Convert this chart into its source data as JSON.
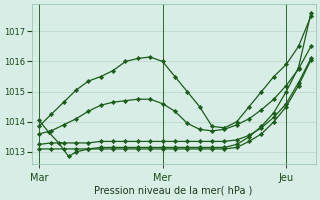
{
  "xlabel": "Pression niveau de la mer( hPa )",
  "bg_color": "#d8ede5",
  "grid_color": "#b8d8cc",
  "line_color": "#1a5c1a",
  "xtick_labels": [
    "Mar",
    "Mer",
    "Jeu"
  ],
  "xtick_pos": [
    0.0,
    0.5,
    1.0
  ],
  "yticks": [
    1013,
    1014,
    1015,
    1016,
    1017
  ],
  "ylim": [
    1012.6,
    1017.9
  ],
  "xlim": [
    -0.03,
    1.12
  ],
  "vline_pos": [
    0.0,
    0.5,
    1.0
  ],
  "series": [
    {
      "x": [
        0.0,
        0.05,
        0.1,
        0.15,
        0.2,
        0.25,
        0.3,
        0.35,
        0.4,
        0.45,
        0.5,
        0.55,
        0.6,
        0.65,
        0.7,
        0.75,
        0.8,
        0.85,
        0.9,
        0.95,
        1.0,
        1.05,
        1.1
      ],
      "y": [
        1013.85,
        1014.25,
        1014.65,
        1015.05,
        1015.35,
        1015.5,
        1015.7,
        1016.0,
        1016.1,
        1016.15,
        1016.0,
        1015.5,
        1015.0,
        1014.5,
        1013.85,
        1013.8,
        1014.0,
        1014.5,
        1015.0,
        1015.5,
        1015.9,
        1016.5,
        1017.5
      ]
    },
    {
      "x": [
        0.0,
        0.05,
        0.1,
        0.15,
        0.2,
        0.25,
        0.3,
        0.35,
        0.4,
        0.45,
        0.5,
        0.55,
        0.6,
        0.65,
        0.7,
        0.75,
        0.8,
        0.85,
        0.9,
        0.95,
        1.0,
        1.05,
        1.1
      ],
      "y": [
        1013.6,
        1013.7,
        1013.9,
        1014.1,
        1014.35,
        1014.55,
        1014.65,
        1014.7,
        1014.75,
        1014.75,
        1014.6,
        1014.35,
        1013.95,
        1013.75,
        1013.7,
        1013.75,
        1013.9,
        1014.1,
        1014.4,
        1014.75,
        1015.2,
        1015.75,
        1016.5
      ]
    },
    {
      "x": [
        0.0,
        0.05,
        0.1,
        0.15,
        0.2,
        0.25,
        0.3,
        0.35,
        0.4,
        0.45,
        0.5,
        0.55,
        0.6,
        0.65,
        0.7,
        0.75,
        0.8,
        0.85,
        0.9,
        0.95,
        1.0,
        1.05,
        1.1
      ],
      "y": [
        1013.25,
        1013.3,
        1013.3,
        1013.3,
        1013.3,
        1013.35,
        1013.35,
        1013.35,
        1013.35,
        1013.35,
        1013.35,
        1013.35,
        1013.35,
        1013.35,
        1013.35,
        1013.35,
        1013.4,
        1013.55,
        1013.8,
        1014.15,
        1014.6,
        1015.3,
        1016.1
      ]
    },
    {
      "x": [
        0.0,
        0.05,
        0.1,
        0.15,
        0.2,
        0.25,
        0.3,
        0.35,
        0.4,
        0.45,
        0.5,
        0.55,
        0.6,
        0.65,
        0.7,
        0.75,
        0.8,
        0.85,
        0.9,
        0.95,
        1.0,
        1.05,
        1.1
      ],
      "y": [
        1013.1,
        1013.1,
        1013.1,
        1013.1,
        1013.1,
        1013.1,
        1013.1,
        1013.1,
        1013.1,
        1013.1,
        1013.1,
        1013.1,
        1013.1,
        1013.1,
        1013.1,
        1013.1,
        1013.15,
        1013.35,
        1013.6,
        1014.0,
        1014.5,
        1015.2,
        1016.05
      ]
    },
    {
      "x": [
        0.0,
        0.04,
        0.08,
        0.12,
        0.15,
        0.2,
        0.25,
        0.3,
        0.35,
        0.4,
        0.45,
        0.5,
        0.55,
        0.6,
        0.65,
        0.7,
        0.75,
        0.8,
        0.85,
        0.9,
        0.95,
        1.0,
        1.05,
        1.1
      ],
      "y": [
        1014.05,
        1013.65,
        1013.3,
        1012.85,
        1013.0,
        1013.1,
        1013.15,
        1013.15,
        1013.15,
        1013.15,
        1013.15,
        1013.15,
        1013.15,
        1013.15,
        1013.15,
        1013.15,
        1013.15,
        1013.25,
        1013.5,
        1013.85,
        1014.3,
        1015.0,
        1015.8,
        1017.6
      ]
    }
  ]
}
